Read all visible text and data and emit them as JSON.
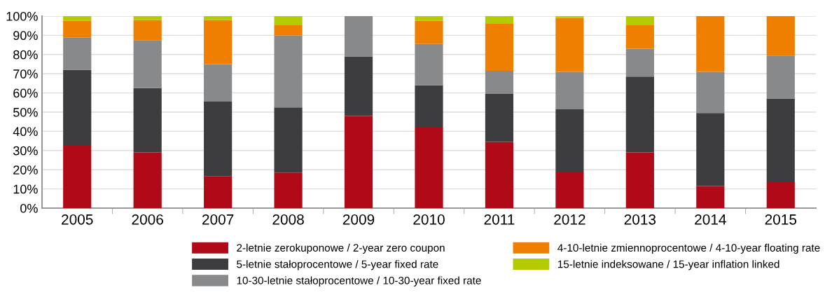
{
  "chart_data": {
    "type": "bar",
    "stacked": true,
    "categories": [
      "2005",
      "2006",
      "2007",
      "2008",
      "2009",
      "2010",
      "2011",
      "2012",
      "2013",
      "2014",
      "2015"
    ],
    "series": [
      {
        "name": "2-letnie zerokuponowe / 2-year zero coupon",
        "color": "#b00a18",
        "values": [
          32.5,
          29,
          16.5,
          18.5,
          48,
          42,
          34.5,
          19,
          29,
          11.5,
          13.5
        ]
      },
      {
        "name": "5-letnie stałoprocentowe / 5-year fixed rate",
        "color": "#3d3d3f",
        "values": [
          39.5,
          33.5,
          39,
          34,
          31,
          22,
          25,
          32.5,
          39.5,
          38,
          43.5
        ]
      },
      {
        "name": "10-30-letnie stałoprocentowe / 10-30-year fixed rate",
        "color": "#88898b",
        "values": [
          17,
          25,
          19.5,
          37.5,
          21,
          21.5,
          12,
          19.5,
          14.5,
          21.5,
          22.5
        ]
      },
      {
        "name": "4-10-letnie zmiennoprocentowe / 4-10-year floating rate",
        "color": "#ef7f00",
        "values": [
          8.5,
          10.5,
          23,
          5.5,
          0,
          12,
          24.5,
          28,
          12.5,
          29,
          20.5
        ]
      },
      {
        "name": "15-letnie indeksowane / 15-year inflation linked",
        "color": "#b3cb00",
        "values": [
          2.5,
          2,
          2,
          4.5,
          0,
          2.5,
          4,
          1,
          4.5,
          0,
          0
        ]
      }
    ],
    "ylim": [
      0,
      100
    ],
    "yticks": [
      {
        "value": 0,
        "label": "0%"
      },
      {
        "value": 10,
        "label": "10%"
      },
      {
        "value": 20,
        "label": "20%"
      },
      {
        "value": 30,
        "label": "30%"
      },
      {
        "value": 40,
        "label": "40%"
      },
      {
        "value": 50,
        "label": "50%"
      },
      {
        "value": 60,
        "label": "60%"
      },
      {
        "value": 70,
        "label": "70%"
      },
      {
        "value": 80,
        "label": "80%"
      },
      {
        "value": 90,
        "label": "90%"
      },
      {
        "value": 100,
        "label": "100%"
      }
    ],
    "grid": "y",
    "legend": "bottom"
  }
}
